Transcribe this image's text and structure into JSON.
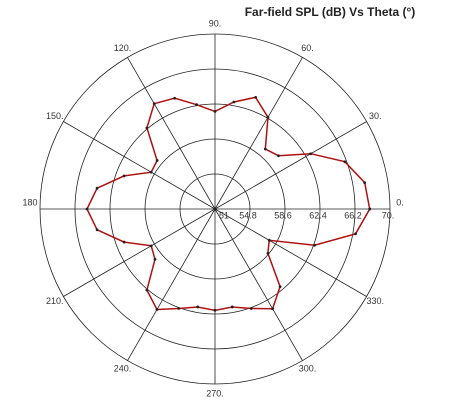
{
  "chart_data": {
    "type": "polar",
    "title": "Far-field SPL (dB) Vs Theta (°)",
    "theta": [
      0,
      10,
      20,
      30,
      40,
      50,
      60,
      70,
      80,
      90,
      100,
      110,
      120,
      130,
      140,
      150,
      160,
      170,
      180,
      190,
      200,
      210,
      220,
      230,
      240,
      250,
      260,
      270,
      280,
      290,
      300,
      310,
      320,
      330,
      340,
      350,
      360
    ],
    "series": [
      {
        "name": "SPL",
        "color": "#b01010",
        "values": [
          67.8,
          67.5,
          66.0,
          63.0,
          60.0,
          59.5,
          62.5,
          63.9,
          62.8,
          61.6,
          62.5,
          63.8,
          64.2,
          62.5,
          59.2,
          59.0,
          61.5,
          64.0,
          64.9,
          64.0,
          61.5,
          59.0,
          59.5,
          62.5,
          63.6,
          62.5,
          61.8,
          62.0,
          61.8,
          62.5,
          63.5,
          62.0,
          58.5,
          57.8,
          62.5,
          66.5,
          67.8
        ]
      }
    ],
    "rlim": [
      51,
      70
    ],
    "rticks": [
      51,
      54.8,
      58.6,
      62.4,
      66.2,
      {
        "value": 70,
        "label": "70."
      }
    ],
    "thetaticks": [
      {
        "value": 0,
        "label": "0."
      },
      {
        "value": 30,
        "label": "30."
      },
      {
        "value": 60,
        "label": "60."
      },
      {
        "value": 90,
        "label": "90."
      },
      {
        "value": 120,
        "label": "120."
      },
      {
        "value": 150,
        "label": "150."
      },
      {
        "value": 180,
        "label": "180"
      },
      {
        "value": 210,
        "label": "210."
      },
      {
        "value": 240,
        "label": "240."
      },
      {
        "value": 270,
        "label": "270."
      },
      {
        "value": 300,
        "label": "300."
      },
      {
        "value": 330,
        "label": "330."
      }
    ]
  }
}
